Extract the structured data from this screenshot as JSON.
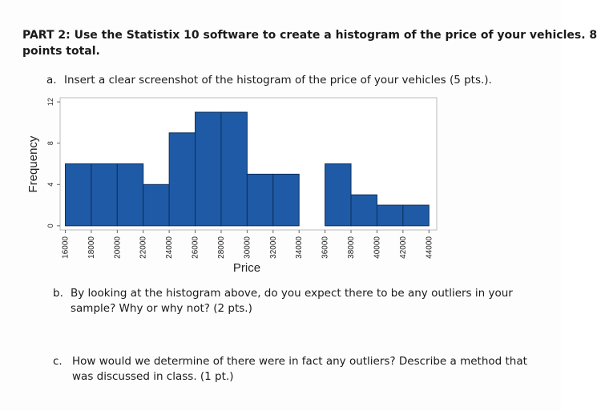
{
  "header": {
    "lines": [
      "PART 2: Use the Statistix 10 software to create a histogram of the price of your vehicles. 8",
      "points total."
    ]
  },
  "items": [
    {
      "marker": "a.",
      "lines": [
        "Insert a clear screenshot of the histogram of the price of your vehicles (5 pts.)."
      ]
    },
    {
      "marker": "b.",
      "lines": [
        "By looking at the histogram above, do you expect there to be any outliers in your",
        "sample? Why or why not? (2 pts.)"
      ]
    },
    {
      "marker": "c.",
      "lines": [
        "How would we determine of there were in fact any outliers? Describe a method that",
        "was discussed in class. (1 pt.)"
      ]
    }
  ],
  "chart_data": {
    "type": "histogram",
    "x_label": "Price",
    "y_label": "Frequency",
    "bins": [
      16000,
      18000,
      20000,
      22000,
      24000,
      26000,
      28000,
      30000,
      32000,
      34000,
      36000,
      38000,
      40000,
      42000,
      44000
    ],
    "counts": [
      6,
      6,
      6,
      4,
      9,
      11,
      11,
      5,
      5,
      0,
      6,
      3,
      2,
      2
    ],
    "color": "#1f5aa6",
    "xlim": [
      15600,
      44600
    ],
    "ylim": [
      -0.4,
      12.4
    ],
    "xticks": [
      16000,
      18000,
      20000,
      22000,
      24000,
      26000,
      28000,
      30000,
      32000,
      34000,
      36000,
      38000,
      40000,
      42000,
      44000
    ],
    "yticks": [
      0,
      4,
      8,
      12
    ]
  }
}
